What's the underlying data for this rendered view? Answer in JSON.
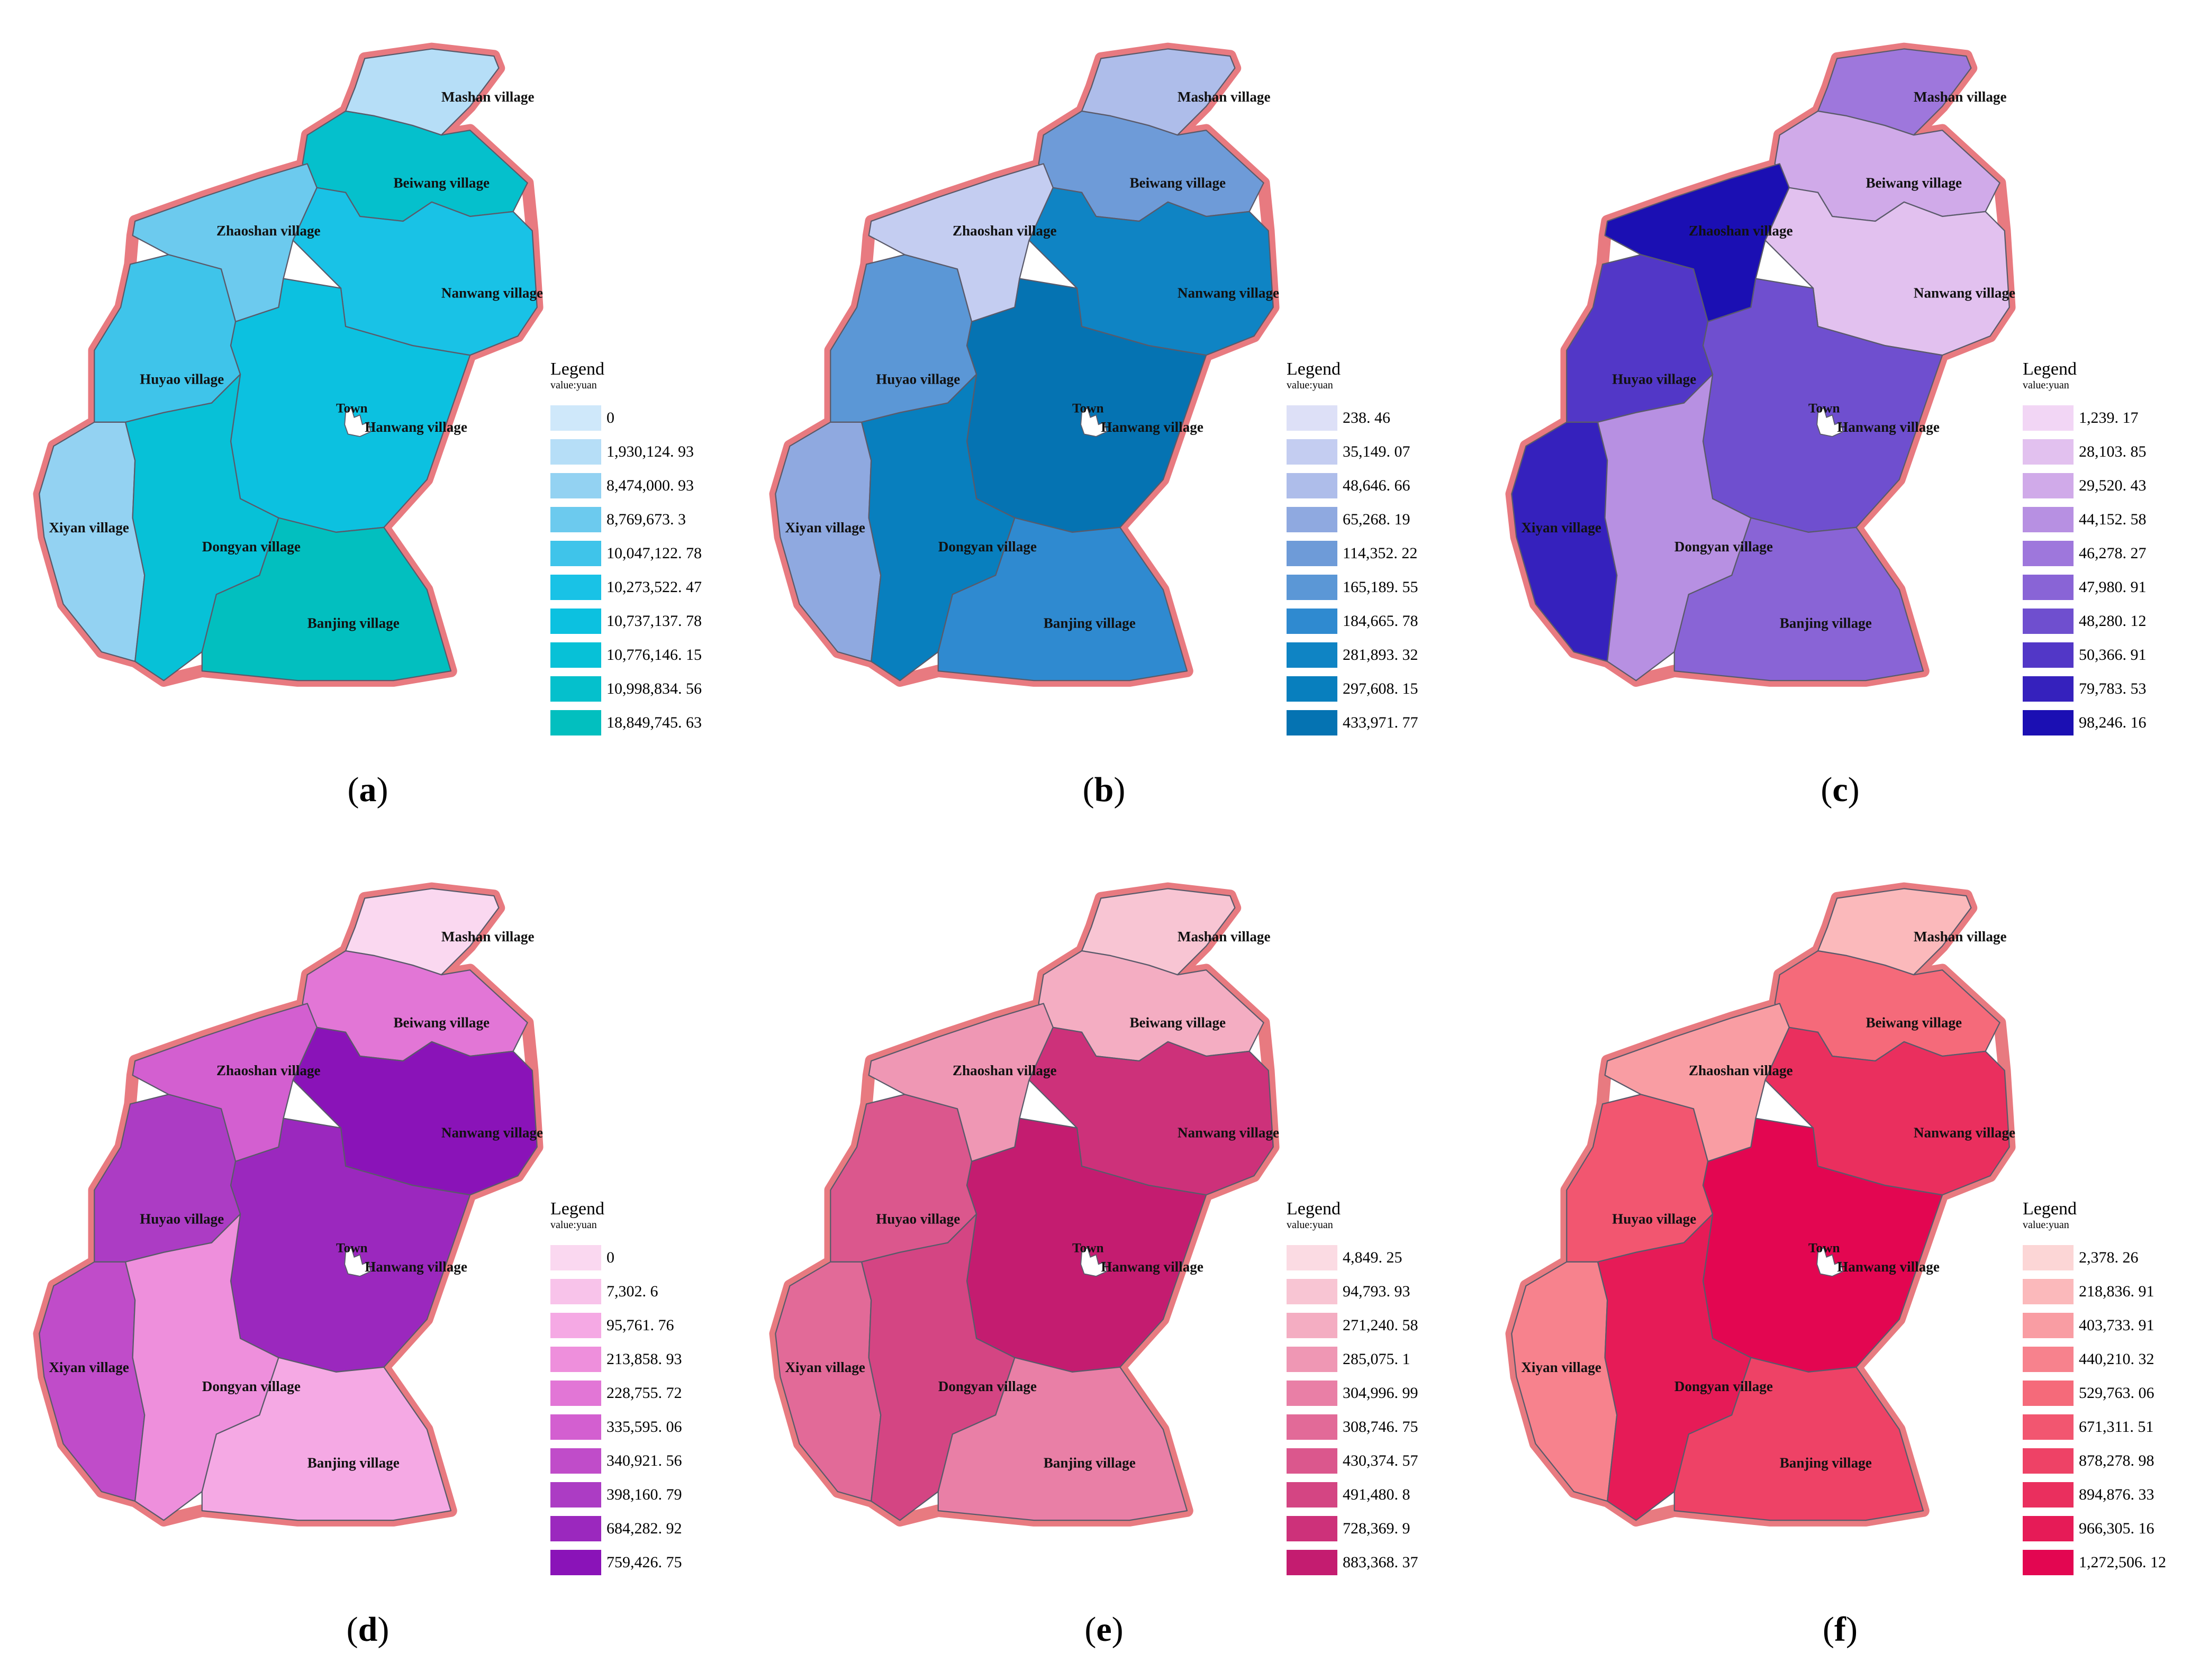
{
  "legend_title": "Legend",
  "legend_unit": "value:yuan",
  "town_label": "Town",
  "village_names": {
    "mashan": "Mashan village",
    "beiwang": "Beiwang village",
    "zhaoshan": "Zhaoshan village",
    "nanwang": "Nanwang village",
    "huyao": "Huyao village",
    "hanwang": "Hanwang village",
    "xiyan": "Xiyan village",
    "dongyan": "Dongyan village",
    "banjing": "Banjing village"
  },
  "border_color": "#e87a80",
  "panels": [
    {
      "letter": "a",
      "legend": [
        {
          "value": "0",
          "color": "#cfe8fa"
        },
        {
          "value": "1,930,124. 93",
          "color": "#b6def7"
        },
        {
          "value": "8,474,000. 93",
          "color": "#93d2f2"
        },
        {
          "value": "8,769,673. 3",
          "color": "#6ccaee"
        },
        {
          "value": "10,047,122. 78",
          "color": "#3fc4ea"
        },
        {
          "value": "10,273,522. 47",
          "color": "#19c2e6"
        },
        {
          "value": "10,737,137. 78",
          "color": "#0cc1e0"
        },
        {
          "value": "10,776,146. 15",
          "color": "#07c1d7"
        },
        {
          "value": "10,998,834. 56",
          "color": "#05c0cc"
        },
        {
          "value": "18,849,745. 63",
          "color": "#02bfbf"
        }
      ],
      "villages": {
        "mashan": "#b6def7",
        "beiwang": "#05c0cc",
        "zhaoshan": "#6ccaee",
        "nanwang": "#19c2e6",
        "huyao": "#3fc4ea",
        "hanwang": "#0cc1e0",
        "xiyan": "#93d2f2",
        "dongyan": "#07c1d7",
        "banjing": "#02bfbf"
      }
    },
    {
      "letter": "b",
      "legend": [
        {
          "value": "238. 46",
          "color": "#dde0f7"
        },
        {
          "value": "35,149. 07",
          "color": "#c4cdf1"
        },
        {
          "value": "48,646. 66",
          "color": "#aebdea"
        },
        {
          "value": "65,268. 19",
          "color": "#8fa9e0"
        },
        {
          "value": "114,352. 22",
          "color": "#6e9bd8"
        },
        {
          "value": "165,189. 55",
          "color": "#5b97d6"
        },
        {
          "value": "184,665. 78",
          "color": "#2f8ad0"
        },
        {
          "value": "281,893. 32",
          "color": "#0f84c4"
        },
        {
          "value": "297,608. 15",
          "color": "#087fbe"
        },
        {
          "value": "433,971. 77",
          "color": "#0573b2"
        }
      ],
      "villages": {
        "mashan": "#aebdea",
        "beiwang": "#6e9bd8",
        "zhaoshan": "#c4cdf1",
        "nanwang": "#0f84c4",
        "huyao": "#5b97d6",
        "hanwang": "#0573b2",
        "xiyan": "#8fa9e0",
        "dongyan": "#087fbe",
        "banjing": "#2f8ad0"
      }
    },
    {
      "letter": "c",
      "legend": [
        {
          "value": "1,239. 17",
          "color": "#f2d6f5"
        },
        {
          "value": "28,103. 85",
          "color": "#e2c1ef"
        },
        {
          "value": "29,520. 43",
          "color": "#d0aae9"
        },
        {
          "value": "44,152. 58",
          "color": "#b790e2"
        },
        {
          "value": "46,278. 27",
          "color": "#9e77dc"
        },
        {
          "value": "47,980. 91",
          "color": "#8964d6"
        },
        {
          "value": "48,280. 12",
          "color": "#6f4fcf"
        },
        {
          "value": "50,366. 91",
          "color": "#5237c7"
        },
        {
          "value": "79,783. 53",
          "color": "#3521bd"
        },
        {
          "value": "98,246. 16",
          "color": "#1b0fb3"
        }
      ],
      "villages": {
        "mashan": "#9e77dc",
        "beiwang": "#d0aae9",
        "zhaoshan": "#1b0fb3",
        "nanwang": "#e2c1ef",
        "huyao": "#5237c7",
        "hanwang": "#6f4fcf",
        "xiyan": "#3521bd",
        "dongyan": "#b790e2",
        "banjing": "#8964d6"
      }
    },
    {
      "letter": "d",
      "legend": [
        {
          "value": "0",
          "color": "#fad8f0"
        },
        {
          "value": "7,302. 6",
          "color": "#f8c3ea"
        },
        {
          "value": "95,761. 76",
          "color": "#f5a9e4"
        },
        {
          "value": "213,858. 93",
          "color": "#ee8fdc"
        },
        {
          "value": "228,755. 72",
          "color": "#e276d6"
        },
        {
          "value": "335,595. 06",
          "color": "#d35fd0"
        },
        {
          "value": "340,921. 56",
          "color": "#c04cc9"
        },
        {
          "value": "398,160. 79",
          "color": "#ac3cc4"
        },
        {
          "value": "684,282. 92",
          "color": "#9b28be"
        },
        {
          "value": "759,426. 75",
          "color": "#8a13b8"
        }
      ],
      "villages": {
        "mashan": "#fad8f0",
        "beiwang": "#e276d6",
        "zhaoshan": "#d35fd0",
        "nanwang": "#8a13b8",
        "huyao": "#ac3cc4",
        "hanwang": "#9b28be",
        "xiyan": "#c04cc9",
        "dongyan": "#ee8fdc",
        "banjing": "#f5a9e4"
      }
    },
    {
      "letter": "e",
      "legend": [
        {
          "value": "4,849. 25",
          "color": "#fbdbe3"
        },
        {
          "value": "94,793. 93",
          "color": "#f8c5d3"
        },
        {
          "value": "271,240. 58",
          "color": "#f4adc2"
        },
        {
          "value": "285,075. 1",
          "color": "#ef97b4"
        },
        {
          "value": "304,996. 99",
          "color": "#e97fa6"
        },
        {
          "value": "308,746. 75",
          "color": "#e26a98"
        },
        {
          "value": "430,374. 57",
          "color": "#db578d"
        },
        {
          "value": "491,480. 8",
          "color": "#d44583"
        },
        {
          "value": "728,369. 9",
          "color": "#cd317a"
        },
        {
          "value": "883,368. 37",
          "color": "#c41c70"
        }
      ],
      "villages": {
        "mashan": "#f8c5d3",
        "beiwang": "#f4adc2",
        "zhaoshan": "#ef97b4",
        "nanwang": "#cd317a",
        "huyao": "#db578d",
        "hanwang": "#c41c70",
        "xiyan": "#e26a98",
        "dongyan": "#d44583",
        "banjing": "#e97fa6"
      }
    },
    {
      "letter": "f",
      "legend": [
        {
          "value": "2,378. 26",
          "color": "#fcd6d6"
        },
        {
          "value": "218,836. 91",
          "color": "#fbb9bb"
        },
        {
          "value": "403,733. 91",
          "color": "#f99da3"
        },
        {
          "value": "440,210. 32",
          "color": "#f7828d"
        },
        {
          "value": "529,763. 06",
          "color": "#f56a7a"
        },
        {
          "value": "671,311. 51",
          "color": "#f25670"
        },
        {
          "value": "878,278. 98",
          "color": "#ee4266"
        },
        {
          "value": "894,876. 33",
          "color": "#ea2f5e"
        },
        {
          "value": "966,305. 16",
          "color": "#e61b57"
        },
        {
          "value": "1,272,506. 12",
          "color": "#e30651"
        }
      ],
      "villages": {
        "mashan": "#fbb9bb",
        "beiwang": "#f56a7a",
        "zhaoshan": "#f99da3",
        "nanwang": "#ea2f5e",
        "huyao": "#f25670",
        "hanwang": "#e30651",
        "xiyan": "#f7828d",
        "dongyan": "#e61b57",
        "banjing": "#ee4266"
      }
    }
  ]
}
